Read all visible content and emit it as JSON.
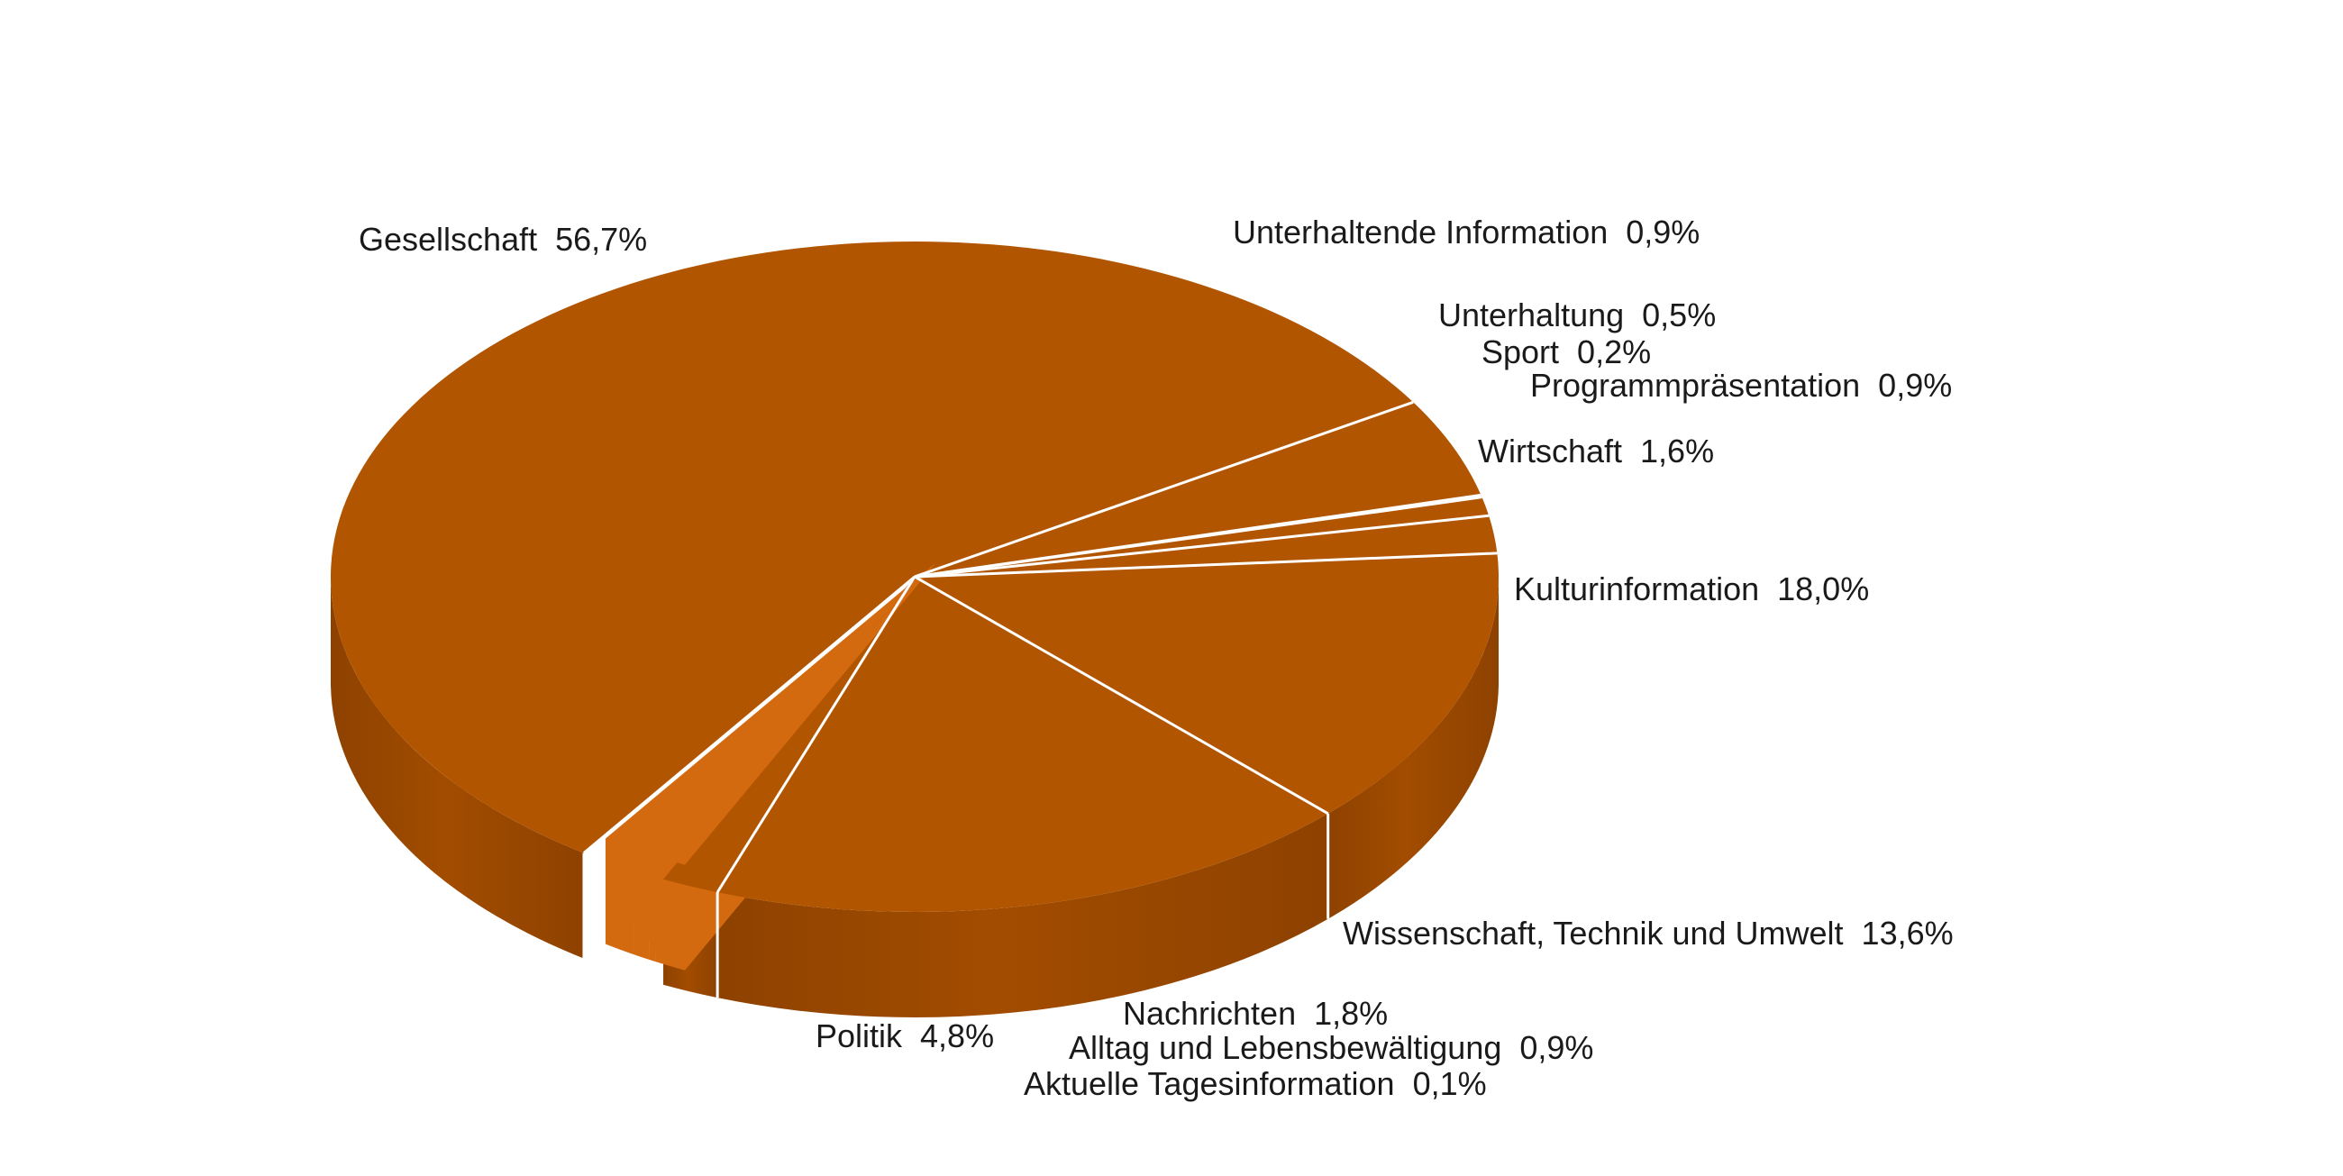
{
  "chart_data": {
    "type": "pie",
    "style": "3d",
    "title": "",
    "colors": {
      "top": "#b25500",
      "side_dark": "#8e4200",
      "side_mid": "#a24c00",
      "pulled_out": "#d46a10",
      "separator": "#ffffff"
    },
    "slices": [
      {
        "name": "Gesellschaft",
        "value": 56.7,
        "value_label": "56,7%"
      },
      {
        "name": "Politik",
        "value": 4.8,
        "value_label": "4,8%"
      },
      {
        "name": "Aktuelle Tagesinformation",
        "value": 0.1,
        "value_label": "0,1%"
      },
      {
        "name": "Alltag und Lebensbewältigung",
        "value": 0.9,
        "value_label": "0,9%"
      },
      {
        "name": "Nachrichten",
        "value": 1.8,
        "value_label": "1,8%"
      },
      {
        "name": "Wissenschaft, Technik und Umwelt",
        "value": 13.6,
        "value_label": "13,6%"
      },
      {
        "name": "Kulturinformation",
        "value": 18.0,
        "value_label": "18,0%"
      },
      {
        "name": "Wirtschaft",
        "value": 1.6,
        "value_label": "1,6%"
      },
      {
        "name": "Programmpräsentation",
        "value": 0.9,
        "value_label": "0,9%"
      },
      {
        "name": "Sport",
        "value": 0.2,
        "value_label": "0,2%"
      },
      {
        "name": "Unterhaltung",
        "value": 0.5,
        "value_label": "0,5%"
      },
      {
        "name": "Unterhaltende Information",
        "value": 0.9,
        "value_label": "0,9%"
      }
    ]
  }
}
